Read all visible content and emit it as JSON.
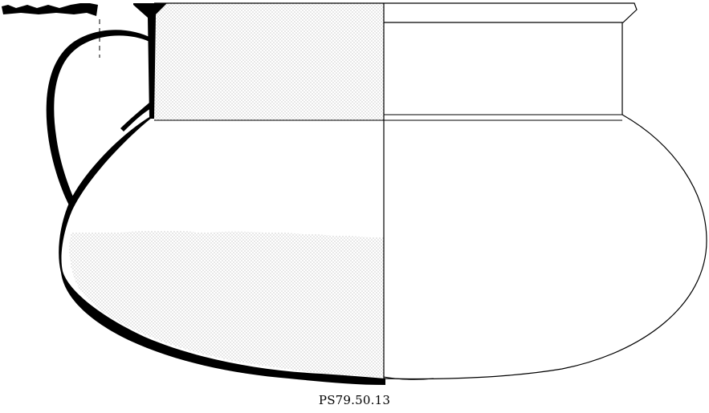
{
  "caption": "PS79.50.13",
  "colors": {
    "ink": "#000000",
    "paper": "#ffffff",
    "stipple": "#9a9a9a"
  }
}
